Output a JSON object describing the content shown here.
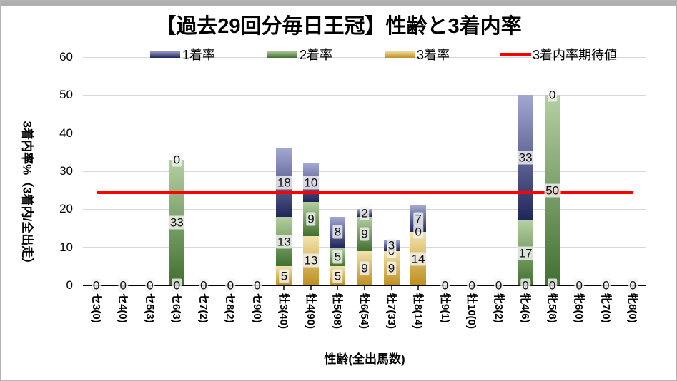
{
  "chart_data": {
    "type": "bar",
    "subtype": "stacked-bar-with-reference-line",
    "title": "【過去29回分毎日王冠】性齢と3着内率",
    "xlabel": "性齢(全出馬数)",
    "ylabel": "3着内率%（3着内/全出走）",
    "ylim": [
      0,
      60
    ],
    "ytick_step": 10,
    "yticks": [
      0,
      10,
      20,
      30,
      40,
      50,
      60
    ],
    "grid": true,
    "legend_position": "top",
    "categories": [
      "セ3(0)",
      "セ4(0)",
      "セ5(3)",
      "セ6(3)",
      "セ7(2)",
      "セ8(2)",
      "セ9(0)",
      "牡3(40)",
      "牡4(90)",
      "牡5(98)",
      "牡6(54)",
      "牡7(33)",
      "牡8(14)",
      "牡9(1)",
      "牡10(0)",
      "牝3(2)",
      "牝4(6)",
      "牝5(8)",
      "牝6(0)",
      "牝7(0)",
      "牝8(0)"
    ],
    "stack_order": "bottom-to-top",
    "series": [
      {
        "name": "3着率",
        "dark": "#be8f1e",
        "light": "#f2e4ae",
        "values": [
          0,
          0,
          0,
          0,
          0,
          0,
          0,
          5,
          13,
          5,
          9,
          9,
          14,
          0,
          0,
          0,
          0,
          0,
          0,
          0,
          0
        ]
      },
      {
        "name": "2着率",
        "dark": "#41702f",
        "light": "#b5d0a2",
        "values": [
          0,
          0,
          0,
          33,
          0,
          0,
          0,
          13,
          9,
          5,
          9,
          0,
          0,
          0,
          0,
          0,
          17,
          50,
          0,
          0,
          0
        ]
      },
      {
        "name": "1着率",
        "dark": "#20265a",
        "light": "#a3a8d2",
        "values": [
          0,
          0,
          0,
          0,
          0,
          0,
          0,
          18,
          10,
          8,
          2,
          3,
          7,
          0,
          0,
          0,
          33,
          0,
          0,
          0,
          0
        ]
      }
    ],
    "expected_line": {
      "name": "3着内率期待値",
      "value": 24.3,
      "color": "#ff0000"
    },
    "legend": [
      {
        "label": "1着率",
        "swatch": "bar",
        "dark": "#20265a",
        "light": "#a3a8d2"
      },
      {
        "label": "2着率",
        "swatch": "bar",
        "dark": "#41702f",
        "light": "#b5d0a2"
      },
      {
        "label": "3着率",
        "swatch": "bar",
        "dark": "#be8f1e",
        "light": "#f2e4ae"
      },
      {
        "label": "3着内率期待値",
        "swatch": "line",
        "color": "#ff0000"
      }
    ]
  }
}
